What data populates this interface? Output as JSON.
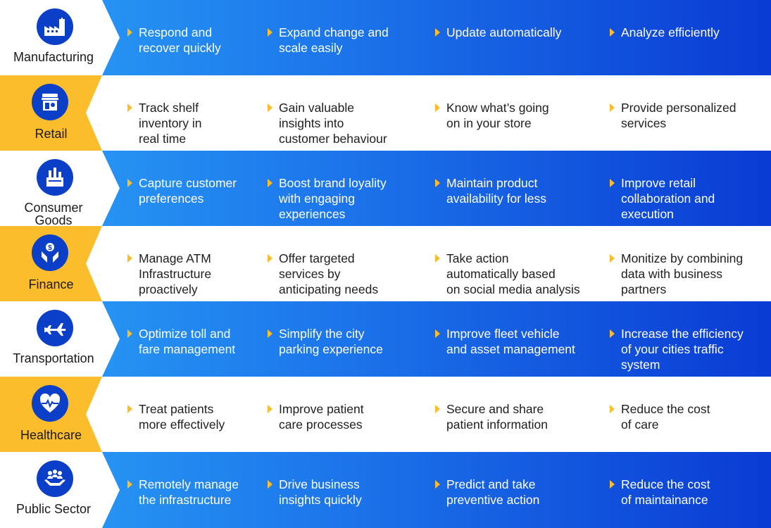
{
  "colors": {
    "yellow": "#fbbd2b",
    "icon_circle": "#0b3fc8",
    "gradient_start": "#2aa0f7",
    "gradient_end": "#0a3bd4"
  },
  "rows": [
    {
      "label": "Manufacturing",
      "icon": "factory-icon",
      "style": "blue",
      "items": [
        "Respond and\nrecover quickly",
        "Expand change and\nscale easily",
        "Update automatically",
        "Analyze efficiently"
      ]
    },
    {
      "label": "Retail",
      "icon": "store-icon",
      "style": "yellow",
      "items": [
        "Track shelf\ninventory in\nreal time",
        "Gain valuable\ninsights into\ncustomer behaviour",
        "Know what’s going\non in your store",
        "Provide personalized\nservices"
      ]
    },
    {
      "label": "Consumer\nGoods",
      "icon": "products-icon",
      "style": "blue",
      "items": [
        "Capture customer\npreferences",
        "Boost brand loyality\nwith engaging\nexperiences",
        "Maintain product\navailability for less",
        "Improve retail\ncollaboration and\nexecution"
      ]
    },
    {
      "label": "Finance",
      "icon": "money-hands-icon",
      "style": "yellow",
      "items": [
        "Manage ATM\nInfrastructure\nproactively",
        "Offer targeted\nservices by\nanticipating needs",
        "Take action\nautomatically based\non social media analysis",
        "Monitize by combining\ndata with business\npartners"
      ]
    },
    {
      "label": "Transportation",
      "icon": "airplane-icon",
      "style": "blue",
      "items": [
        "Optimize toll and\nfare management",
        "Simplify the city\nparking experience",
        "Improve fleet vehicle\nand asset management",
        "Increase the efficiency\nof your cities traffic\nsystem"
      ]
    },
    {
      "label": "Healthcare",
      "icon": "heart-pulse-icon",
      "style": "yellow",
      "items": [
        "Treat patients\nmore effectively",
        "Improve patient\ncare processes",
        "Secure and  share\npatient information",
        "Reduce the cost\nof care"
      ]
    },
    {
      "label": "Public Sector",
      "icon": "people-hands-icon",
      "style": "blue",
      "items": [
        "Remotely manage\nthe infrastructure",
        "Drive business\ninsights quickly",
        "Predict and take\npreventive action",
        "Reduce the cost\nof maintainance"
      ]
    }
  ]
}
